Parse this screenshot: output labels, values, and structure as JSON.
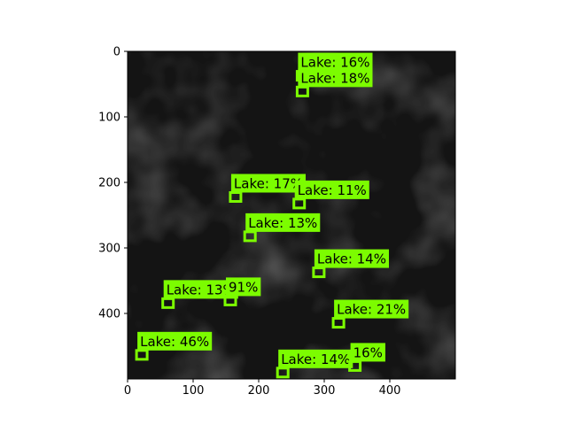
{
  "image": {
    "background_color": "#141414",
    "shadow_color": "#262626",
    "highlight_color": "#5a5a5a",
    "box_color": "#7cfc00",
    "extent_x": [
      0,
      500
    ],
    "extent_y": [
      500,
      0
    ]
  },
  "axes": {
    "x_ticks": [
      0,
      100,
      200,
      300,
      400
    ],
    "y_ticks": [
      0,
      100,
      200,
      300,
      400
    ],
    "x_tick_labels": [
      "0",
      "100",
      "200",
      "300",
      "400"
    ],
    "y_tick_labels": [
      "0",
      "100",
      "200",
      "300",
      "400"
    ]
  },
  "detections": [
    {
      "label": "Lake: 16%",
      "x": 260,
      "y": 17
    },
    {
      "label": "Lake: 18%",
      "x": 260,
      "y": 41
    },
    {
      "label": "Lake: 17%",
      "x": 158,
      "y": 202
    },
    {
      "label": "Lake: 11%",
      "x": 255,
      "y": 212
    },
    {
      "label": "Lake: 13%",
      "x": 180,
      "y": 262
    },
    {
      "label": "Lake: 14%",
      "x": 285,
      "y": 317
    },
    {
      "label": "Lake: 13%",
      "x": 55,
      "y": 364
    },
    {
      "label": "91%",
      "x": 150,
      "y": 360
    },
    {
      "label": "Lake: 21%",
      "x": 315,
      "y": 394
    },
    {
      "label": "Lake: 46%",
      "x": 15,
      "y": 443
    },
    {
      "label": "Lake: 14%",
      "x": 230,
      "y": 470
    },
    {
      "label": "16%",
      "x": 340,
      "y": 460
    }
  ]
}
